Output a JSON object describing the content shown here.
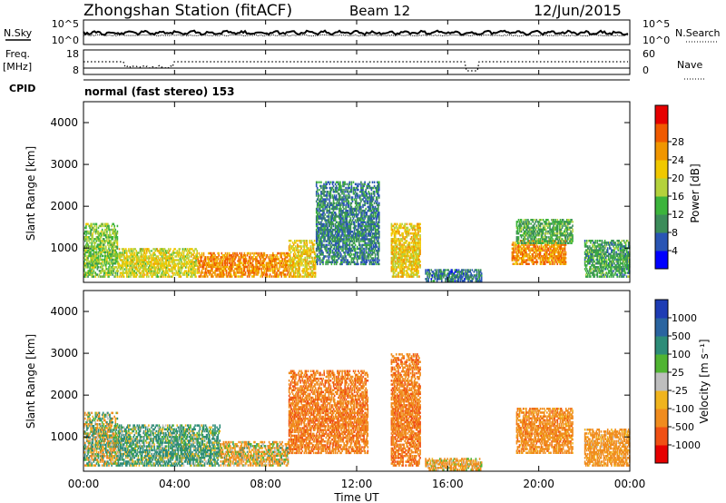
{
  "header": {
    "station": "Zhongshan Station (fitACF)",
    "beam": "Beam 12",
    "date": "12/Jun/2015"
  },
  "top_panels": {
    "nsky_label": "N.Sky",
    "nsky_ticks": [
      "10^5",
      "10^0"
    ],
    "nsearch_label": "N.Search",
    "nsearch_ticks": [
      "10^5",
      "10^0"
    ],
    "freq_label": "Freq.",
    "freq_unit": "[MHz]",
    "freq_ticks": [
      "18",
      "8"
    ],
    "nave_label": "Nave",
    "nave_ticks": [
      "60",
      "0"
    ],
    "cpid_label": "CPID",
    "cpid_text": "normal (fast stereo) 153"
  },
  "x_axis": {
    "label": "Time UT",
    "ticks": [
      "00:00",
      "04:00",
      "08:00",
      "12:00",
      "16:00",
      "20:00",
      "00:00"
    ]
  },
  "chart_data": [
    {
      "type": "heatmap",
      "name": "power",
      "xlabel": "Time UT",
      "ylabel": "Slant Range [km]",
      "xlim": [
        0,
        24
      ],
      "ylim": [
        180,
        4500
      ],
      "y_ticks": [
        "1000",
        "2000",
        "3000",
        "4000"
      ],
      "colorbar": {
        "label": "Power [dB]",
        "ticks": [
          "4",
          "8",
          "12",
          "16",
          "20",
          "24",
          "28"
        ],
        "colors": [
          "#0000ff",
          "#2a55b4",
          "#3c8c5a",
          "#3cb43c",
          "#b4d23c",
          "#f0c800",
          "#f09600",
          "#f05a00",
          "#e60000"
        ]
      },
      "regions": [
        {
          "t": [
            0.0,
            1.5
          ],
          "r": [
            300,
            1600
          ],
          "val": 16
        },
        {
          "t": [
            1.5,
            5.0
          ],
          "r": [
            300,
            1000
          ],
          "val": 20
        },
        {
          "t": [
            5.0,
            9.0
          ],
          "r": [
            300,
            900
          ],
          "val": 27
        },
        {
          "t": [
            9.0,
            10.2
          ],
          "r": [
            300,
            1200
          ],
          "val": 22
        },
        {
          "t": [
            10.2,
            13.0
          ],
          "r": [
            600,
            2600
          ],
          "val": 9
        },
        {
          "t": [
            13.5,
            14.8
          ],
          "r": [
            300,
            1600
          ],
          "val": 22
        },
        {
          "t": [
            15.0,
            17.5
          ],
          "r": [
            200,
            500
          ],
          "val": 8
        },
        {
          "t": [
            18.8,
            21.2
          ],
          "r": [
            600,
            1200
          ],
          "val": 27
        },
        {
          "t": [
            19.0,
            21.5
          ],
          "r": [
            1100,
            1700
          ],
          "val": 13
        },
        {
          "t": [
            22.0,
            24.0
          ],
          "r": [
            300,
            1200
          ],
          "val": 12
        }
      ]
    },
    {
      "type": "heatmap",
      "name": "velocity",
      "xlabel": "Time UT",
      "ylabel": "Slant Range [km]",
      "xlim": [
        0,
        24
      ],
      "ylim": [
        180,
        4500
      ],
      "y_ticks": [
        "1000",
        "2000",
        "3000",
        "4000"
      ],
      "colorbar": {
        "label": "Velocity [m s⁻¹]",
        "ticks": [
          "1000",
          "500",
          "100",
          "25",
          "-25",
          "-100",
          "-500",
          "-1000"
        ],
        "colors": [
          "#1e3cb4",
          "#2a64a0",
          "#2d8c78",
          "#50b432",
          "#bebebe",
          "#f0b41e",
          "#f08c1e",
          "#f05014",
          "#e60000"
        ]
      },
      "regions": [
        {
          "t": [
            0.0,
            1.5
          ],
          "r": [
            300,
            1600
          ],
          "val": 0
        },
        {
          "t": [
            1.5,
            6.0
          ],
          "r": [
            300,
            1300
          ],
          "val": 150
        },
        {
          "t": [
            6.0,
            9.0
          ],
          "r": [
            300,
            900
          ],
          "val": -100
        },
        {
          "t": [
            9.0,
            12.5
          ],
          "r": [
            600,
            2600
          ],
          "val": -400
        },
        {
          "t": [
            13.5,
            14.8
          ],
          "r": [
            300,
            3000
          ],
          "val": -400
        },
        {
          "t": [
            15.0,
            17.5
          ],
          "r": [
            200,
            500
          ],
          "val": -150
        },
        {
          "t": [
            19.0,
            21.5
          ],
          "r": [
            600,
            1700
          ],
          "val": -300
        },
        {
          "t": [
            22.0,
            24.0
          ],
          "r": [
            300,
            1200
          ],
          "val": -250
        }
      ]
    }
  ]
}
